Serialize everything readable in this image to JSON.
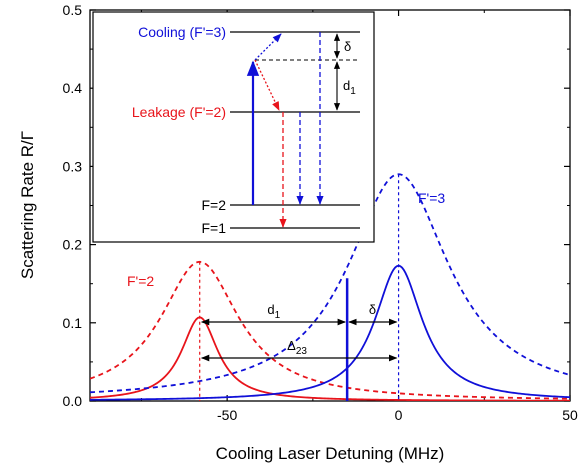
{
  "chart_data": {
    "type": "line",
    "xlabel": "Cooling Laser Detuning (MHz)",
    "ylabel": "Scattering Rate R/Γ",
    "xlim": [
      -90,
      50
    ],
    "ylim": [
      0,
      0.5
    ],
    "x_ticks": [
      -50,
      0,
      50
    ],
    "x_tick_labels": [
      "-50",
      "0",
      "50"
    ],
    "y_ticks": [
      0.0,
      0.1,
      0.2,
      0.3,
      0.4,
      0.5
    ],
    "y_tick_labels": [
      "0.0",
      "0.1",
      "0.2",
      "0.3",
      "0.4",
      "0.5"
    ],
    "grid": false,
    "series": [
      {
        "color": "#e8141b",
        "style": "solid",
        "center": -58,
        "peak": 0.107,
        "hwhm": 6.5
      },
      {
        "color": "#e8141b",
        "style": "dashed",
        "center": -58,
        "peak": 0.178,
        "hwhm": 14
      },
      {
        "color": "#1010d8",
        "style": "solid",
        "center": 0,
        "peak": 0.173,
        "hwhm": 8.5
      },
      {
        "color": "#1010d8",
        "style": "dashed",
        "center": 0,
        "peak": 0.29,
        "hwhm": 18
      }
    ],
    "curve_labels": [
      {
        "text": "F'=2",
        "color": "#e8141b"
      },
      {
        "text": "F'=3",
        "color": "#1010d8"
      }
    ],
    "laser_line": {
      "x": -15,
      "y_top": 0.157,
      "color": "#1010d8"
    },
    "annotations": [
      {
        "text": "d",
        "sub": "1"
      },
      {
        "text": "δ",
        "sub": ""
      },
      {
        "text": "Δ",
        "sub": "23"
      }
    ],
    "inset": {
      "levels": [
        {
          "label": "Cooling (F'=3)",
          "color": "#1010d8"
        },
        {
          "label": "Leakage (F'=2)",
          "color": "#e8141b"
        },
        {
          "label": "F=2",
          "color": "#000000"
        },
        {
          "label": "F=1",
          "color": "#000000"
        }
      ],
      "delta_label": "δ",
      "d1_label": "d",
      "d1_sub": "1"
    }
  }
}
